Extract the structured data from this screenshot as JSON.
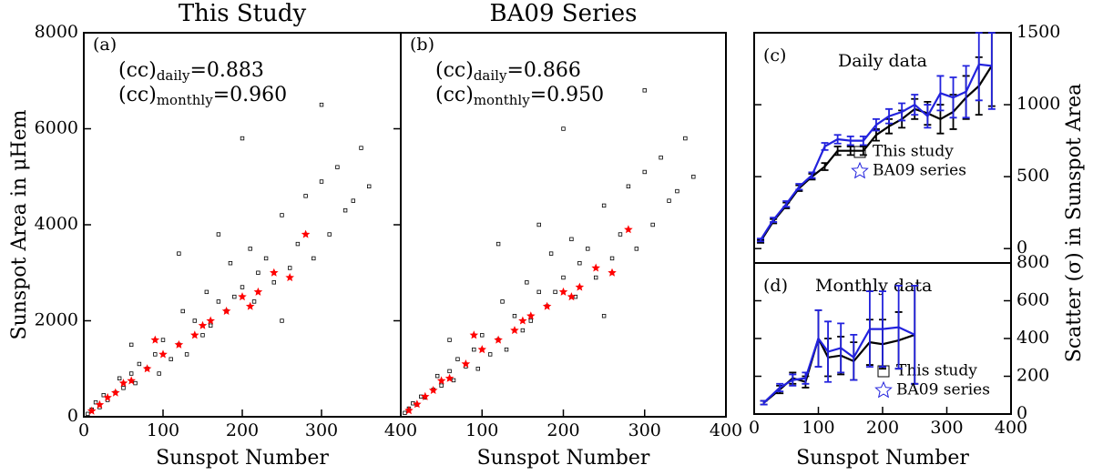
{
  "chart_data": [
    {
      "type": "scatter",
      "title": "This Study",
      "panel_label": "(a)",
      "ylabel": "Sunspot Area in μHem",
      "xlabel": "Sunspot Number",
      "annotations": [
        {
          "pre": "(cc)",
          "sub": "daily",
          "post": "=0.883",
          "color": "#000000"
        },
        {
          "pre": "(cc)",
          "sub": "monthly",
          "post": "=0.960",
          "color": "#ff0000"
        }
      ],
      "xlim": [
        0,
        400
      ],
      "ylim": [
        0,
        8000
      ],
      "xticks": [
        0,
        100,
        200,
        300,
        400
      ],
      "yticks": [
        0,
        2000,
        4000,
        6000,
        8000
      ],
      "series": [
        {
          "color": "#000000",
          "marker": "square",
          "x": [
            5,
            10,
            15,
            20,
            25,
            30,
            40,
            45,
            50,
            60,
            65,
            70,
            80,
            90,
            95,
            100,
            110,
            120,
            125,
            130,
            140,
            150,
            155,
            160,
            170,
            180,
            185,
            190,
            200,
            210,
            215,
            220,
            230,
            240,
            250,
            260,
            270,
            280,
            290,
            300,
            310,
            320,
            330,
            340,
            350,
            360,
            120,
            200,
            300,
            60,
            170,
            250
          ],
          "y": [
            60,
            150,
            300,
            200,
            450,
            350,
            500,
            800,
            600,
            900,
            700,
            1100,
            1000,
            1300,
            900,
            1600,
            1200,
            1500,
            2200,
            1300,
            2000,
            1700,
            2600,
            1900,
            2400,
            2200,
            3200,
            2500,
            2700,
            3500,
            2400,
            3000,
            3300,
            2800,
            4200,
            3100,
            3600,
            4600,
            3300,
            4900,
            3800,
            5200,
            4300,
            4500,
            5600,
            4800,
            3400,
            5800,
            6500,
            1500,
            3800,
            2000
          ]
        },
        {
          "color": "#ff0000",
          "marker": "star",
          "x": [
            10,
            20,
            30,
            40,
            50,
            60,
            80,
            100,
            120,
            140,
            160,
            180,
            200,
            220,
            240,
            260,
            280,
            150,
            90,
            210
          ],
          "y": [
            120,
            250,
            400,
            500,
            700,
            750,
            1000,
            1300,
            1500,
            1700,
            2000,
            2200,
            2500,
            2600,
            3000,
            2900,
            3800,
            1900,
            1600,
            2300
          ]
        }
      ]
    },
    {
      "type": "scatter",
      "title": "BA09 Series",
      "panel_label": "(b)",
      "xlabel": "Sunspot Number",
      "annotations": [
        {
          "pre": "(cc)",
          "sub": "daily",
          "post": "=0.866",
          "color": "#000000"
        },
        {
          "pre": "(cc)",
          "sub": "monthly",
          "post": "=0.950",
          "color": "#ff0000"
        }
      ],
      "xlim": [
        0,
        400
      ],
      "ylim": [
        0,
        8000
      ],
      "xticks": [
        100,
        200,
        300,
        400
      ],
      "series": [
        {
          "color": "#000000",
          "marker": "square",
          "x": [
            5,
            10,
            15,
            20,
            25,
            30,
            40,
            45,
            50,
            60,
            65,
            70,
            80,
            90,
            95,
            100,
            110,
            120,
            125,
            130,
            140,
            150,
            155,
            160,
            170,
            180,
            185,
            190,
            200,
            210,
            215,
            220,
            230,
            240,
            250,
            260,
            270,
            280,
            290,
            300,
            310,
            320,
            330,
            340,
            350,
            360,
            120,
            200,
            300,
            60,
            170,
            250
          ],
          "y": [
            80,
            170,
            280,
            250,
            420,
            400,
            560,
            850,
            650,
            950,
            760,
            1200,
            1050,
            1400,
            1000,
            1700,
            1300,
            1600,
            2400,
            1400,
            2100,
            1800,
            2800,
            2000,
            2600,
            2300,
            3400,
            2600,
            2900,
            3700,
            2500,
            3200,
            3500,
            2900,
            4400,
            3300,
            3800,
            4800,
            3500,
            5100,
            4000,
            5400,
            4500,
            4700,
            5800,
            5000,
            3600,
            6000,
            6800,
            1600,
            4000,
            2100
          ]
        },
        {
          "color": "#ff0000",
          "marker": "star",
          "x": [
            10,
            20,
            30,
            40,
            50,
            60,
            80,
            100,
            120,
            140,
            160,
            180,
            200,
            220,
            240,
            260,
            280,
            150,
            90,
            210
          ],
          "y": [
            130,
            260,
            420,
            550,
            750,
            800,
            1100,
            1400,
            1600,
            1800,
            2100,
            2300,
            2600,
            2700,
            3100,
            3000,
            3900,
            2000,
            1700,
            2500
          ]
        }
      ]
    },
    {
      "type": "line",
      "panel_label": "(c)",
      "subtitle": "Daily data",
      "xlim": [
        0,
        400
      ],
      "ylim": [
        -100,
        1500
      ],
      "yticks": [
        0,
        500,
        1000,
        1500
      ],
      "series": [
        {
          "name": "This study",
          "color": "#000000",
          "x": [
            10,
            30,
            50,
            70,
            90,
            110,
            130,
            150,
            170,
            190,
            210,
            230,
            250,
            270,
            290,
            310,
            330,
            350,
            370
          ],
          "values": [
            50,
            190,
            300,
            420,
            500,
            570,
            680,
            680,
            680,
            790,
            850,
            900,
            970,
            940,
            900,
            950,
            1050,
            1130,
            1270
          ],
          "errors": [
            10,
            15,
            20,
            20,
            20,
            25,
            30,
            30,
            30,
            40,
            50,
            60,
            70,
            80,
            100,
            120,
            150,
            200,
            280
          ]
        },
        {
          "name": "BA09 series",
          "color": "#2222dd",
          "x": [
            10,
            30,
            50,
            70,
            90,
            110,
            130,
            150,
            170,
            190,
            210,
            230,
            250,
            270,
            290,
            310,
            330,
            350,
            370
          ],
          "values": [
            60,
            200,
            310,
            430,
            510,
            710,
            760,
            750,
            750,
            860,
            920,
            950,
            1000,
            920,
            1080,
            1050,
            1090,
            1280,
            1270
          ],
          "errors": [
            10,
            15,
            20,
            20,
            20,
            25,
            30,
            30,
            30,
            40,
            50,
            60,
            70,
            80,
            120,
            140,
            180,
            250,
            300
          ]
        }
      ]
    },
    {
      "type": "line",
      "panel_label": "(d)",
      "subtitle": "Monthly data",
      "xlabel": "Sunspot Number",
      "ylabel2": "Scatter (σ) in Sunspot Area",
      "xlim": [
        0,
        400
      ],
      "ylim": [
        0,
        800
      ],
      "xticks": [
        0,
        100,
        200,
        300,
        400
      ],
      "yticks": [
        0,
        200,
        400,
        600,
        800
      ],
      "series": [
        {
          "name": "This study",
          "color": "#000000",
          "x": [
            15,
            40,
            60,
            80,
            100,
            115,
            135,
            155,
            180,
            200,
            225,
            250
          ],
          "values": [
            60,
            130,
            190,
            170,
            400,
            300,
            310,
            280,
            380,
            370,
            390,
            420
          ],
          "errors": [
            10,
            20,
            30,
            30,
            150,
            100,
            100,
            100,
            120,
            130,
            150,
            260
          ]
        },
        {
          "name": "BA09 series",
          "color": "#2222dd",
          "x": [
            15,
            40,
            60,
            80,
            100,
            115,
            135,
            155,
            180,
            200,
            225,
            250
          ],
          "values": [
            60,
            140,
            180,
            190,
            400,
            330,
            350,
            300,
            450,
            450,
            460,
            420
          ],
          "errors": [
            10,
            20,
            30,
            30,
            150,
            160,
            130,
            120,
            200,
            200,
            220,
            260
          ]
        }
      ]
    }
  ]
}
